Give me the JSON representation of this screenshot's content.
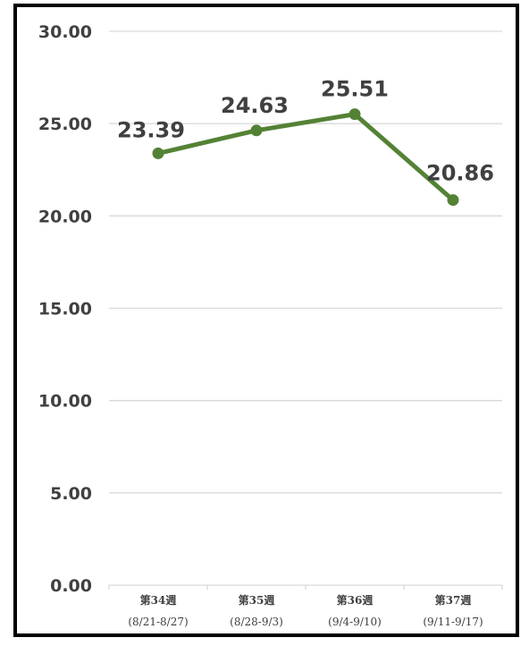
{
  "chart_data": {
    "type": "line",
    "title": "",
    "xlabel": "",
    "ylabel": "",
    "categories": [
      [
        "第34週",
        "(8/21-8/27)"
      ],
      [
        "第35週",
        "(8/28-9/3)"
      ],
      [
        "第36週",
        "(9/4-9/10)"
      ],
      [
        "第37週",
        "(9/11-9/17)"
      ]
    ],
    "series": [
      {
        "values": [
          23.39,
          24.63,
          25.51,
          20.86
        ],
        "labels": [
          "23.39",
          "24.63",
          "25.51",
          "20.86"
        ],
        "color": "#548235"
      }
    ],
    "y_ticks": [
      "0.00",
      "5.00",
      "10.00",
      "15.00",
      "20.00",
      "25.00",
      "30.00"
    ],
    "ylim": [
      0,
      30
    ],
    "grid": true,
    "gridline_color": "#d9d9d9",
    "text_color": "#404040"
  }
}
